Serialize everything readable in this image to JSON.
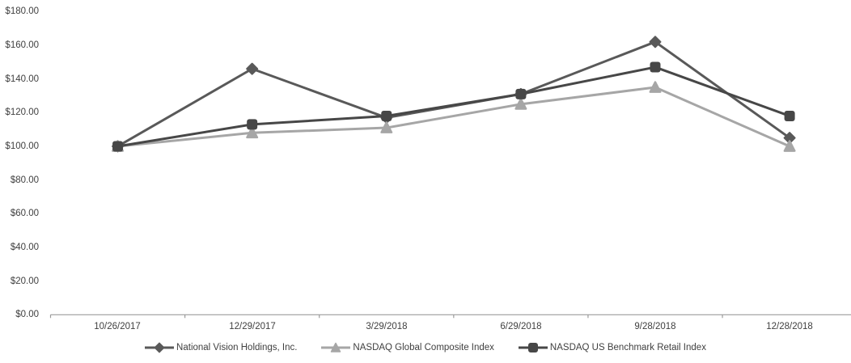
{
  "chart_data": {
    "type": "line",
    "title": "",
    "xlabel": "",
    "ylabel": "",
    "categories": [
      "10/26/2017",
      "12/29/2017",
      "3/29/2018",
      "6/29/2018",
      "9/28/2018",
      "12/28/2018"
    ],
    "series": [
      {
        "name": "National Vision Holdings, Inc.",
        "marker": "diamond",
        "color": "#595959",
        "values": [
          100.0,
          146.0,
          117.0,
          131.0,
          162.0,
          105.0
        ]
      },
      {
        "name": "NASDAQ Global Composite Index",
        "marker": "triangle",
        "color": "#a6a6a6",
        "values": [
          100.0,
          108.0,
          111.0,
          125.0,
          135.0,
          100.0
        ]
      },
      {
        "name": "NASDAQ US Benchmark Retail Index",
        "marker": "square",
        "color": "#474747",
        "values": [
          100.0,
          113.0,
          118.0,
          131.0,
          147.0,
          118.0
        ]
      }
    ],
    "ylim": [
      0,
      180
    ],
    "ytick_step": 20,
    "ytick_labels": [
      "$180.00",
      "$160.00",
      "$140.00",
      "$120.00",
      "$100.00",
      "$80.00",
      "$60.00",
      "$40.00",
      "$20.00",
      "$0.00"
    ],
    "grid": false,
    "legend_position": "bottom",
    "axis_color": "#9b9b9b",
    "text_color": "#3f3f3f",
    "background": "#ffffff"
  }
}
